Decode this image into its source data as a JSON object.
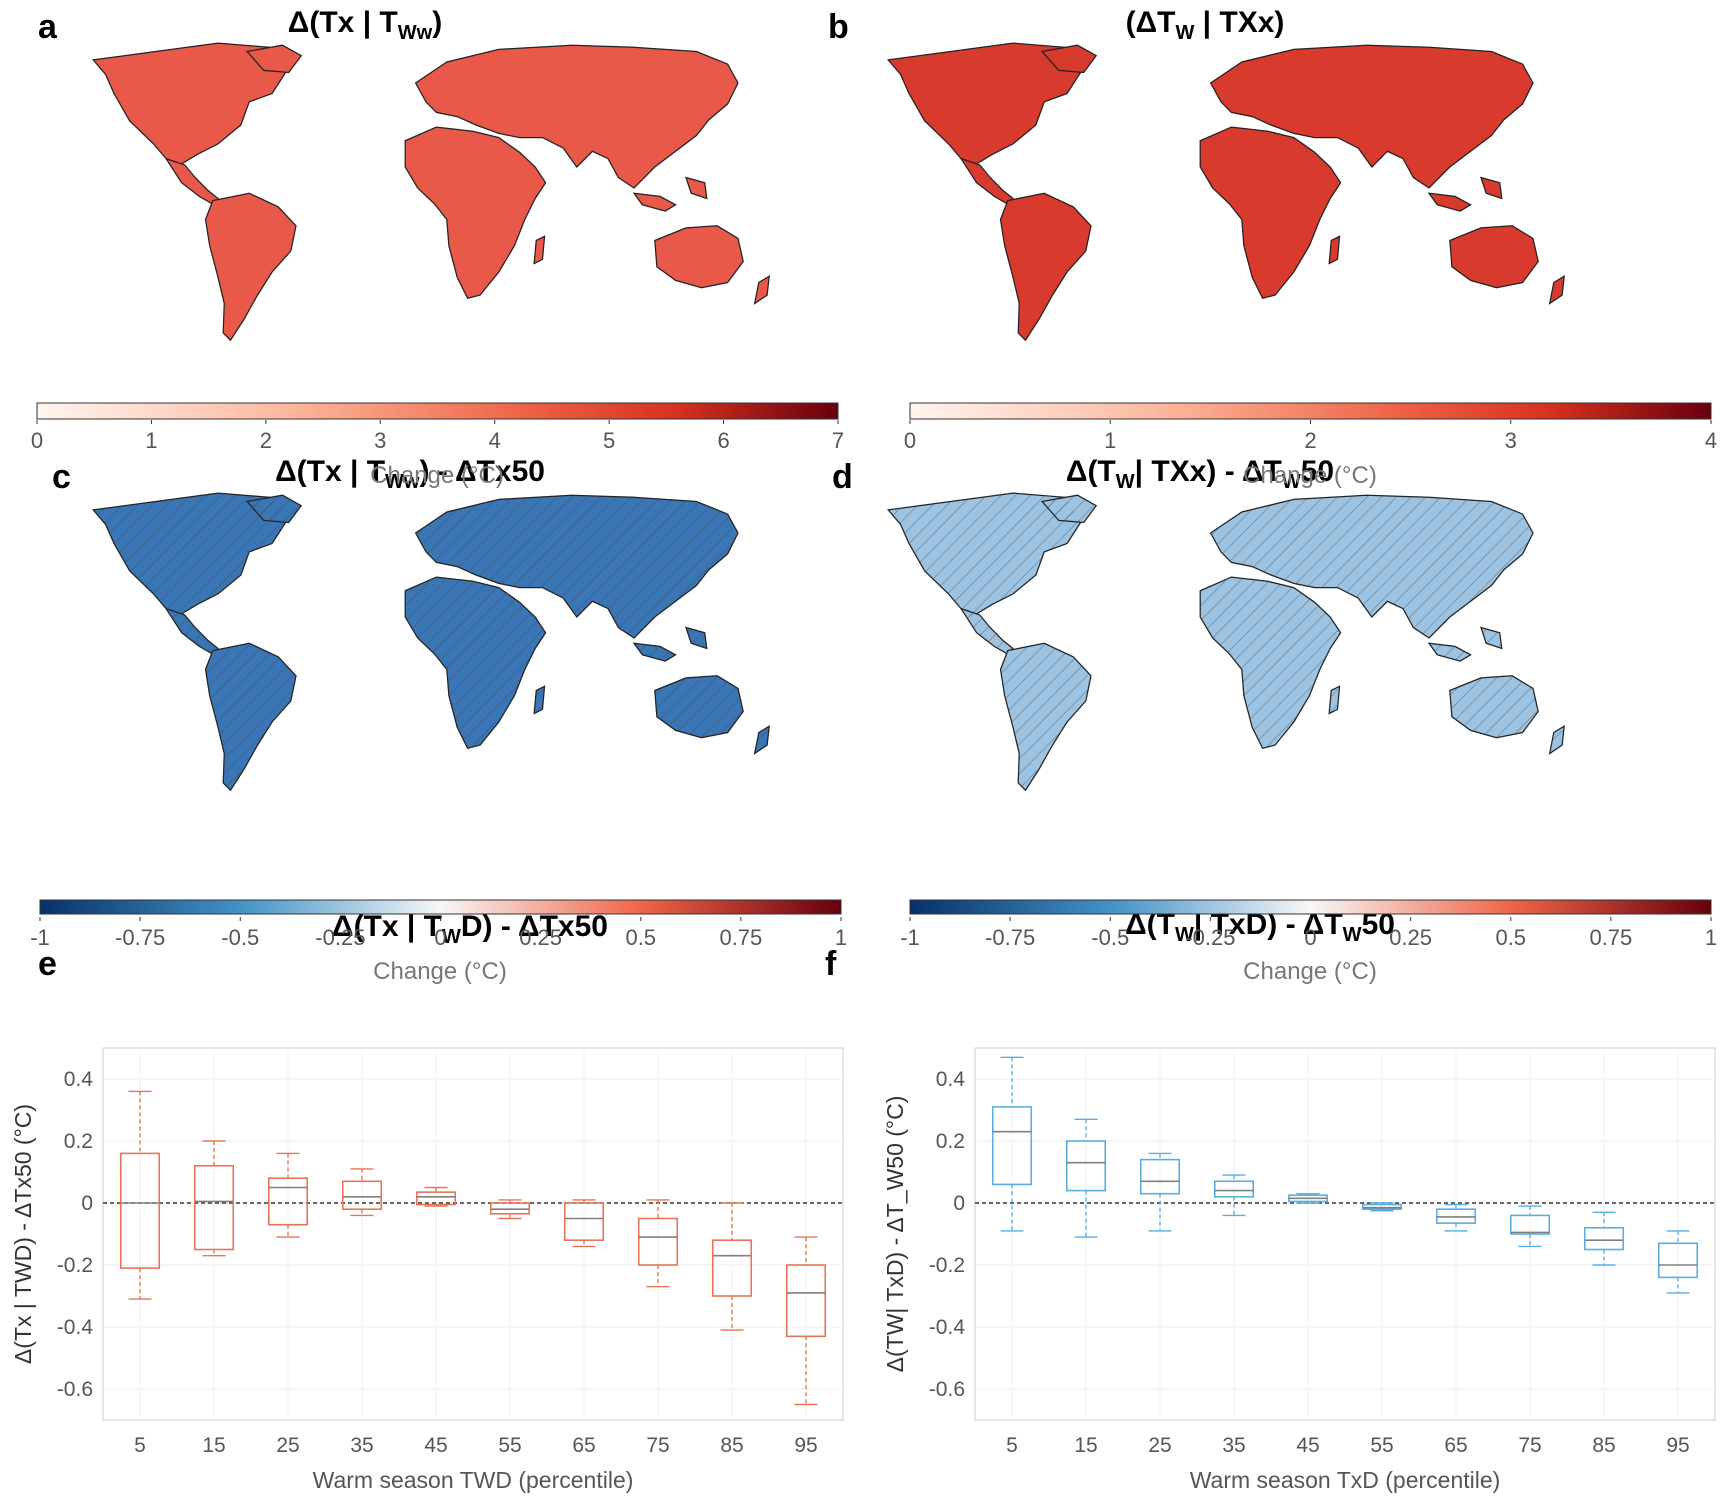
{
  "panels": {
    "a": {
      "letter": "a",
      "title": "Δ(Tx | T",
      "title_sub": "Ww",
      "title_end": ")"
    },
    "b": {
      "letter": "b",
      "title": "(ΔT",
      "title_sub": "W",
      "title_end": " | TXx)"
    },
    "c": {
      "letter": "c",
      "title": "Δ(Tx | T",
      "title_sub": "Ww",
      "title_end": ") - ΔTx50"
    },
    "d": {
      "letter": "d",
      "title": "Δ(T",
      "title_sub": "W",
      "title_mid": "| TXx) - ΔT",
      "title_sub2": "W",
      "title_end": "50"
    },
    "e": {
      "letter": "e",
      "title": "Δ(Tx | T",
      "title_sub": "W",
      "title_end": "D) - ΔTx50"
    },
    "f": {
      "letter": "f",
      "title": "Δ(T",
      "title_sub": "W",
      "title_mid": "| TxD) - ΔT",
      "title_sub2": "W",
      "title_end": "50"
    }
  },
  "colorbars": {
    "a": {
      "ticks": [
        "0",
        "1",
        "2",
        "3",
        "4",
        "5",
        "6",
        "7"
      ],
      "label": "Change (°C)",
      "palette": "reds"
    },
    "b": {
      "ticks": [
        "0",
        "1",
        "2",
        "3",
        "4"
      ],
      "label": "Change (°C)",
      "palette": "reds"
    },
    "c": {
      "ticks": [
        "-1",
        "-0.75",
        "-0.5",
        "-0.25",
        "0",
        "0.25",
        "0.5",
        "0.75",
        "1"
      ],
      "label": "Change (°C)",
      "palette": "diverging"
    },
    "d": {
      "ticks": [
        "-1",
        "-0.75",
        "-0.5",
        "-0.25",
        "0",
        "0.25",
        "0.5",
        "0.75",
        "1"
      ],
      "label": "Change (°C)",
      "palette": "diverging"
    }
  },
  "colors": {
    "box_e": "#e8745a",
    "box_f": "#5aaee0",
    "median": "#808080",
    "map_red_light": "#f4a582",
    "map_red_dark": "#d6302a",
    "map_blue_dark": "#1f5a9e",
    "map_blue_light": "#c6dbef"
  },
  "chart_data": [
    {
      "type": "box",
      "panel": "e",
      "title": "Δ(Tx | TWD) - ΔTx50",
      "xlabel": "Warm season T_WD (percentile)",
      "ylabel": "Δ(Tx | T_WD) - ΔTx50 (°C)",
      "ylim": [
        -0.7,
        0.5
      ],
      "yticks": [
        "0.4",
        "0.2",
        "0",
        "-0.2",
        "-0.4",
        "-0.6"
      ],
      "categories": [
        "5",
        "15",
        "25",
        "35",
        "45",
        "55",
        "65",
        "75",
        "85",
        "95"
      ],
      "whisker_low": [
        -0.31,
        -0.17,
        -0.11,
        -0.04,
        -0.01,
        -0.05,
        -0.14,
        -0.27,
        -0.41,
        -0.65
      ],
      "q1": [
        -0.21,
        -0.15,
        -0.07,
        -0.02,
        -0.005,
        -0.035,
        -0.12,
        -0.2,
        -0.3,
        -0.43
      ],
      "median": [
        0.0,
        0.005,
        0.05,
        0.02,
        0.02,
        -0.02,
        -0.05,
        -0.11,
        -0.17,
        -0.29
      ],
      "q3": [
        0.16,
        0.12,
        0.08,
        0.07,
        0.035,
        0.0,
        0.0,
        -0.05,
        -0.12,
        -0.2
      ],
      "whisker_high": [
        0.36,
        0.2,
        0.16,
        0.11,
        0.05,
        0.01,
        0.01,
        0.01,
        0.0,
        -0.11
      ],
      "reference_line": 0
    },
    {
      "type": "box",
      "panel": "f",
      "title": "Δ(TW| TxD) - ΔTW50",
      "xlabel": "Warm season TxD (percentile)",
      "ylabel": "Δ(T_W| TxD) - ΔT_W50 (°C)",
      "ylim": [
        -0.7,
        0.5
      ],
      "yticks": [
        "0.4",
        "0.2",
        "0",
        "-0.2",
        "-0.4",
        "-0.6"
      ],
      "categories": [
        "5",
        "15",
        "25",
        "35",
        "45",
        "55",
        "65",
        "75",
        "85",
        "95"
      ],
      "whisker_low": [
        -0.09,
        -0.11,
        -0.09,
        -0.04,
        0.0,
        -0.025,
        -0.09,
        -0.14,
        -0.2,
        -0.29
      ],
      "q1": [
        0.06,
        0.04,
        0.03,
        0.02,
        0.005,
        -0.02,
        -0.065,
        -0.1,
        -0.15,
        -0.24
      ],
      "median": [
        0.23,
        0.13,
        0.07,
        0.04,
        0.015,
        -0.015,
        -0.045,
        -0.095,
        -0.12,
        -0.2
      ],
      "q3": [
        0.31,
        0.2,
        0.14,
        0.07,
        0.025,
        -0.005,
        -0.02,
        -0.04,
        -0.08,
        -0.13
      ],
      "whisker_high": [
        0.47,
        0.27,
        0.16,
        0.09,
        0.03,
        0.0,
        -0.005,
        -0.01,
        -0.03,
        -0.09
      ],
      "reference_line": 0
    }
  ]
}
